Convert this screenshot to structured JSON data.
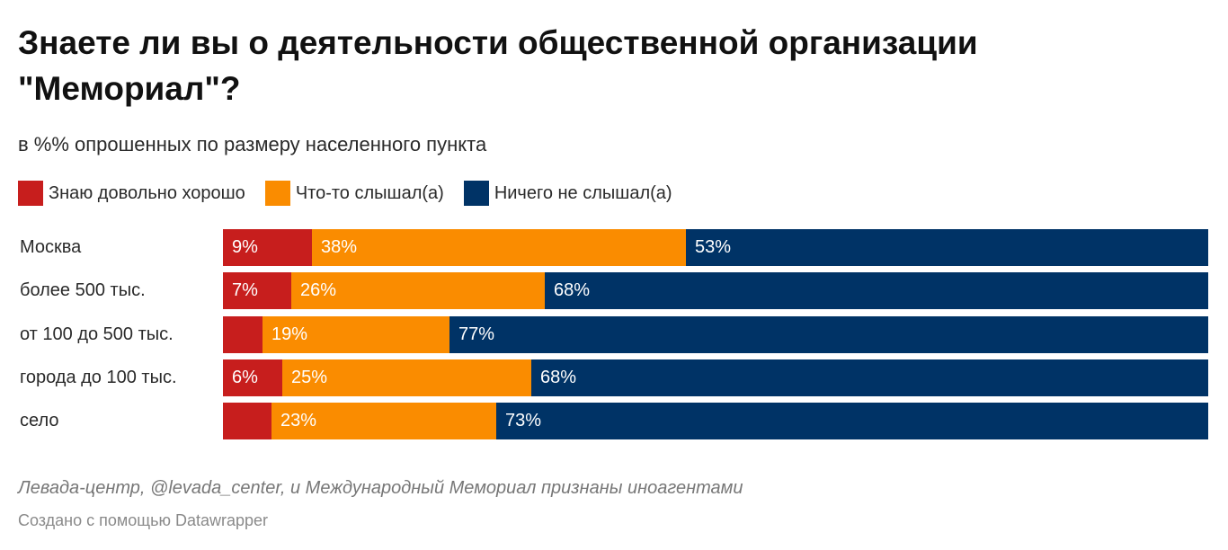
{
  "chart_data": {
    "type": "bar",
    "orientation": "horizontal",
    "stacked": true,
    "title": "Знаете ли вы о деятельности общественной организации \"Мемориал\"?",
    "subtitle": "в %% опрошенных по размеру населенного пункта",
    "legend_position": "top-left",
    "grid": false,
    "xlim": [
      0,
      100
    ],
    "categories": [
      "Москва",
      "более 500 тыс.",
      "от 100 до 500 тыс.",
      "города до 100 тыс.",
      "село"
    ],
    "series": [
      {
        "name": "Знаю довольно хорошо",
        "color": "#c71e1d",
        "values": [
          9,
          7,
          4,
          6,
          5
        ],
        "labels": [
          "9%",
          "7%",
          "",
          "6%",
          ""
        ]
      },
      {
        "name": "Что-то слышал(а)",
        "color": "#fa8c00",
        "values": [
          38,
          26,
          19,
          25,
          23
        ],
        "labels": [
          "38%",
          "26%",
          "19%",
          "25%",
          "23%"
        ]
      },
      {
        "name": "Ничего не слышал(а)",
        "color": "#003366",
        "values": [
          53,
          68,
          77,
          68,
          73
        ],
        "labels": [
          "53%",
          "68%",
          "77%",
          "68%",
          "73%"
        ]
      }
    ]
  },
  "footnote": "Левада-центр, @levada_center, и Международный Мемориал признаны иноагентами",
  "credit": "Создано с помощью Datawrapper"
}
